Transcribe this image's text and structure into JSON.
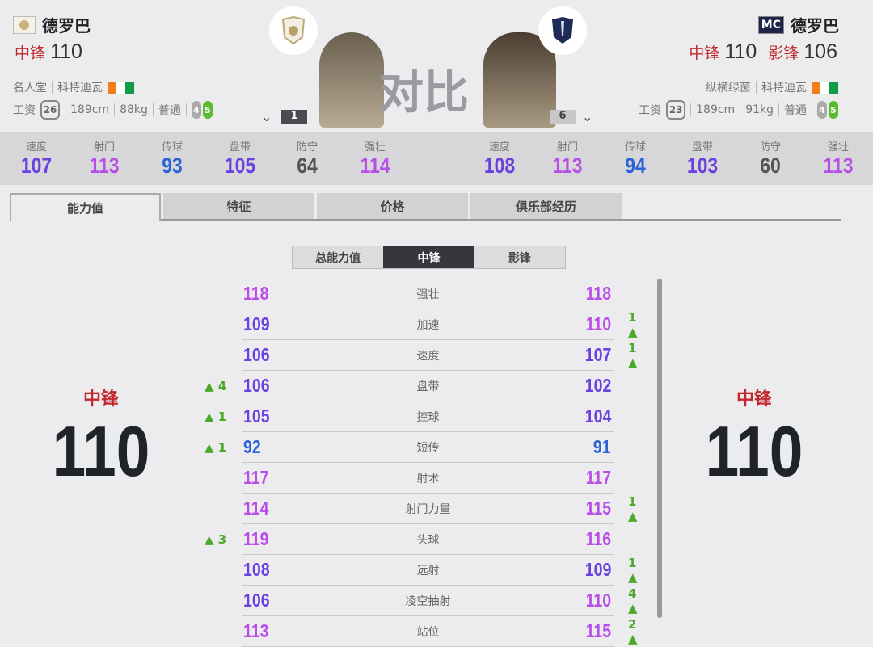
{
  "left": {
    "name": "德罗巴",
    "position": "中锋",
    "rating": "110",
    "season": "名人堂",
    "nation": "科特迪瓦",
    "wage_label": "工资",
    "wage": "26",
    "height": "189cm",
    "weight": "88kg",
    "body": "普通",
    "weak_foot": "4",
    "skill": "5",
    "level": "1",
    "badge_icon": "icon-badge",
    "club_icon": "icon-club-crest"
  },
  "right": {
    "name": "德罗巴",
    "badge": "MC",
    "position": "中锋",
    "rating": "110",
    "position2": "影锋",
    "rating2": "106",
    "season": "纵横绿茵",
    "nation": "科特迪瓦",
    "wage_label": "工资",
    "wage": "23",
    "height": "189cm",
    "weight": "91kg",
    "body": "普通",
    "weak_foot": "4",
    "skill": "5",
    "level": "6",
    "club_icon": "shield-crest"
  },
  "center_title": "对比",
  "summary_labels": [
    "速度",
    "射门",
    "传球",
    "盘带",
    "防守",
    "强壮"
  ],
  "left_summary": [
    107,
    113,
    93,
    105,
    64,
    114
  ],
  "right_summary": [
    108,
    113,
    94,
    103,
    60,
    113
  ],
  "tabs": [
    "能力值",
    "特征",
    "价格",
    "俱乐部经历"
  ],
  "subtabs": [
    "总能力值",
    "中锋",
    "影锋"
  ],
  "big_left": {
    "position": "中锋",
    "rating": "110"
  },
  "big_right": {
    "position": "中锋",
    "rating": "110"
  },
  "rows": [
    {
      "label": "强壮",
      "left": 118,
      "right": 118,
      "ldiff": "",
      "rdiff": ""
    },
    {
      "label": "加速",
      "left": 109,
      "right": 110,
      "ldiff": "",
      "rdiff": "1"
    },
    {
      "label": "速度",
      "left": 106,
      "right": 107,
      "ldiff": "",
      "rdiff": "1"
    },
    {
      "label": "盘带",
      "left": 106,
      "right": 102,
      "ldiff": "4",
      "rdiff": ""
    },
    {
      "label": "控球",
      "left": 105,
      "right": 104,
      "ldiff": "1",
      "rdiff": ""
    },
    {
      "label": "短传",
      "left": 92,
      "right": 91,
      "ldiff": "1",
      "rdiff": ""
    },
    {
      "label": "射术",
      "left": 117,
      "right": 117,
      "ldiff": "",
      "rdiff": ""
    },
    {
      "label": "射门力量",
      "left": 114,
      "right": 115,
      "ldiff": "",
      "rdiff": "1"
    },
    {
      "label": "头球",
      "left": 119,
      "right": 116,
      "ldiff": "3",
      "rdiff": ""
    },
    {
      "label": "远射",
      "left": 108,
      "right": 109,
      "ldiff": "",
      "rdiff": "1"
    },
    {
      "label": "凌空抽射",
      "left": 106,
      "right": 110,
      "ldiff": "",
      "rdiff": "4"
    },
    {
      "label": "站位",
      "left": 113,
      "right": 115,
      "ldiff": "",
      "rdiff": "2"
    }
  ],
  "colors": {
    "elite": "#b84de8",
    "high": "#6a40e0",
    "good": "#2a62d8",
    "low": "#555555",
    "up": "#4caa2a",
    "red": "#c0282e"
  }
}
